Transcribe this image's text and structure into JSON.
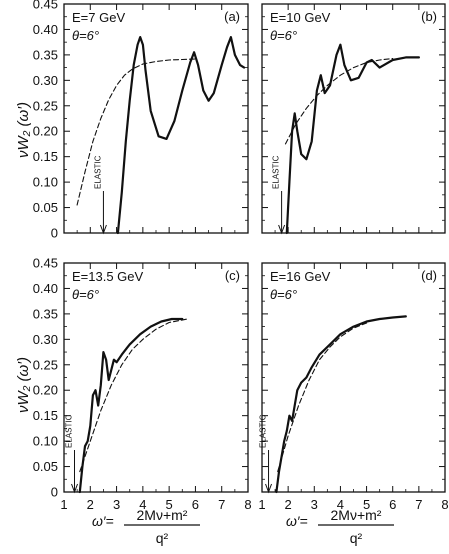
{
  "figure": {
    "ylabel": "νW₂ (ω′)",
    "xlabel_prefix": "ω′=",
    "xlabel_num": "2Mν+m²",
    "xlabel_den": "q²",
    "y_ticks": [
      "0",
      "0.05",
      "0.10",
      "0.15",
      "0.20",
      "0.25",
      "0.30",
      "0.35",
      "0.40",
      "0.45"
    ],
    "x_ticks": [
      "1",
      "2",
      "3",
      "4",
      "5",
      "6",
      "7",
      "8"
    ],
    "elastic_label": "ELASTIC"
  },
  "chart_data": [
    {
      "type": "line",
      "panel": "(a)",
      "annotation_energy": "E=7 GeV",
      "annotation_angle": "θ=6°",
      "xlim": [
        1,
        8
      ],
      "ylim": [
        0,
        0.45
      ],
      "elastic_x": 2.5,
      "series": [
        {
          "style": "solid",
          "x": [
            3.05,
            3.2,
            3.35,
            3.5,
            3.65,
            3.8,
            3.9,
            4.0,
            4.1,
            4.3,
            4.6,
            4.9,
            5.2,
            5.5,
            5.8,
            5.95,
            6.1,
            6.3,
            6.5,
            6.7,
            7.0,
            7.2,
            7.35,
            7.5,
            7.7,
            7.85
          ],
          "y": [
            0.0,
            0.08,
            0.18,
            0.26,
            0.33,
            0.37,
            0.385,
            0.37,
            0.32,
            0.24,
            0.19,
            0.185,
            0.22,
            0.28,
            0.335,
            0.355,
            0.33,
            0.28,
            0.26,
            0.275,
            0.33,
            0.365,
            0.385,
            0.35,
            0.33,
            0.325
          ]
        },
        {
          "style": "dashed",
          "x": [
            1.5,
            1.8,
            2.1,
            2.4,
            2.7,
            3.0,
            3.3,
            3.6,
            4.0,
            4.5,
            5.0,
            5.5,
            6.0
          ],
          "y": [
            0.055,
            0.12,
            0.18,
            0.225,
            0.262,
            0.29,
            0.31,
            0.322,
            0.332,
            0.337,
            0.34,
            0.341,
            0.342
          ]
        }
      ]
    },
    {
      "type": "line",
      "panel": "(b)",
      "annotation_energy": "E=10 GeV",
      "annotation_angle": "θ=6°",
      "xlim": [
        1,
        8
      ],
      "ylim": [
        0,
        0.45
      ],
      "elastic_x": 1.75,
      "series": [
        {
          "style": "solid",
          "x": [
            1.95,
            2.05,
            2.15,
            2.25,
            2.35,
            2.5,
            2.7,
            2.9,
            3.1,
            3.25,
            3.4,
            3.6,
            3.85,
            4.0,
            4.15,
            4.4,
            4.7,
            5.0,
            5.2,
            5.5,
            6.0,
            6.5,
            7.0
          ],
          "y": [
            0.0,
            0.1,
            0.2,
            0.235,
            0.2,
            0.155,
            0.145,
            0.18,
            0.28,
            0.31,
            0.275,
            0.29,
            0.35,
            0.37,
            0.33,
            0.3,
            0.305,
            0.335,
            0.34,
            0.325,
            0.34,
            0.345,
            0.345
          ]
        },
        {
          "style": "dashed",
          "x": [
            1.9,
            2.3,
            2.7,
            3.1,
            3.5,
            4.0,
            4.5,
            5.0,
            5.5,
            6.0
          ],
          "y": [
            0.175,
            0.215,
            0.245,
            0.27,
            0.29,
            0.31,
            0.325,
            0.335,
            0.34,
            0.343
          ]
        }
      ]
    },
    {
      "type": "line",
      "panel": "(c)",
      "annotation_energy": "E=13.5 GeV",
      "annotation_angle": "θ=6°",
      "xlim": [
        1,
        8
      ],
      "ylim": [
        0,
        0.45
      ],
      "elastic_x": 1.4,
      "series": [
        {
          "style": "solid",
          "x": [
            1.6,
            1.7,
            1.8,
            1.9,
            2.0,
            2.1,
            2.2,
            2.3,
            2.4,
            2.5,
            2.6,
            2.7,
            2.8,
            2.9,
            3.0,
            3.2,
            3.5,
            3.9,
            4.3,
            4.7,
            5.1,
            5.5
          ],
          "y": [
            0.0,
            0.05,
            0.09,
            0.1,
            0.13,
            0.19,
            0.2,
            0.17,
            0.21,
            0.275,
            0.26,
            0.22,
            0.24,
            0.26,
            0.255,
            0.27,
            0.29,
            0.31,
            0.325,
            0.335,
            0.34,
            0.34
          ]
        },
        {
          "style": "dashed",
          "x": [
            1.6,
            2.0,
            2.4,
            2.8,
            3.2,
            3.6,
            4.0,
            4.5,
            5.0,
            5.7
          ],
          "y": [
            0.04,
            0.1,
            0.16,
            0.21,
            0.25,
            0.28,
            0.3,
            0.32,
            0.333,
            0.34
          ]
        }
      ]
    },
    {
      "type": "line",
      "panel": "(d)",
      "annotation_energy": "E=16 GeV",
      "annotation_angle": "θ=6°",
      "xlim": [
        1,
        8
      ],
      "ylim": [
        0,
        0.45
      ],
      "elastic_x": 1.25,
      "series": [
        {
          "style": "solid",
          "x": [
            1.55,
            1.65,
            1.75,
            1.85,
            1.95,
            2.05,
            2.15,
            2.25,
            2.35,
            2.5,
            2.7,
            2.9,
            3.2,
            3.6,
            4.0,
            4.5,
            5.0,
            5.5,
            6.0,
            6.5
          ],
          "y": [
            0.0,
            0.04,
            0.07,
            0.1,
            0.12,
            0.15,
            0.14,
            0.17,
            0.2,
            0.215,
            0.225,
            0.245,
            0.27,
            0.29,
            0.31,
            0.325,
            0.335,
            0.34,
            0.343,
            0.345
          ]
        },
        {
          "style": "dashed",
          "x": [
            1.6,
            2.0,
            2.4,
            2.8,
            3.2,
            3.6,
            4.0,
            4.5,
            5.0
          ],
          "y": [
            0.04,
            0.11,
            0.17,
            0.22,
            0.26,
            0.285,
            0.305,
            0.322,
            0.332
          ]
        }
      ]
    }
  ]
}
